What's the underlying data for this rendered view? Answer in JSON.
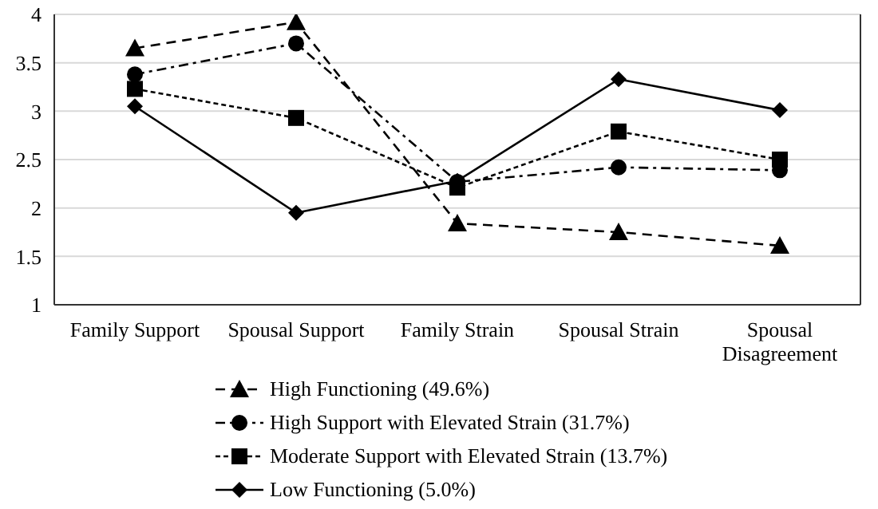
{
  "chart_data": {
    "type": "line",
    "categories": [
      "Family Support",
      "Spousal Support",
      "Family Strain",
      "Spousal Strain",
      "Spousal Disagreement"
    ],
    "series": [
      {
        "name": "High Functioning (49.6%)",
        "color": "#000000",
        "marker": "triangle",
        "line_style": "dashed",
        "values": [
          3.65,
          3.92,
          1.84,
          1.75,
          1.61
        ]
      },
      {
        "name": "High Support with Elevated Strain (31.7%)",
        "color": "#000000",
        "marker": "circle",
        "line_style": "dashdot",
        "values": [
          3.38,
          3.7,
          2.27,
          2.42,
          2.39
        ]
      },
      {
        "name": "Moderate Support with Elevated Strain (13.7%)",
        "color": "#000000",
        "marker": "square",
        "line_style": "dotted",
        "values": [
          3.23,
          2.93,
          2.21,
          2.79,
          2.5
        ]
      },
      {
        "name": "Low Functioning (5.0%)",
        "color": "#000000",
        "marker": "diamond",
        "line_style": "solid",
        "values": [
          3.05,
          1.95,
          2.28,
          3.33,
          3.01
        ]
      }
    ],
    "ylim": [
      1,
      4
    ],
    "yticks": [
      1,
      1.5,
      2,
      2.5,
      3,
      3.5,
      4
    ],
    "grid": "y",
    "legend": "bottom"
  }
}
